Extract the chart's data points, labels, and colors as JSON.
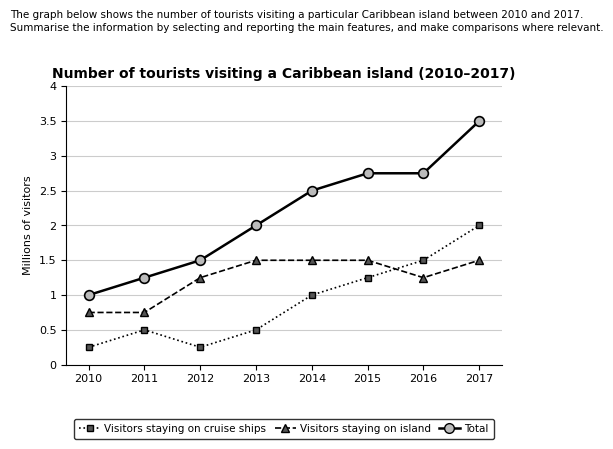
{
  "title": "Number of tourists visiting a Caribbean island (2010–2017)",
  "header_line1": "The graph below shows the number of tourists visiting a particular Caribbean island between 2010 and 2017.",
  "header_line2": "Summarise the information by selecting and reporting the main features, and make comparisons where relevant.",
  "ylabel": "Millions of visitors",
  "years": [
    2010,
    2011,
    2012,
    2013,
    2014,
    2015,
    2016,
    2017
  ],
  "cruise_ships": [
    0.25,
    0.5,
    0.25,
    0.5,
    1.0,
    1.25,
    1.5,
    2.0
  ],
  "on_island": [
    0.75,
    0.75,
    1.25,
    1.5,
    1.5,
    1.5,
    1.25,
    1.5
  ],
  "total": [
    1.0,
    1.25,
    1.5,
    2.0,
    2.5,
    2.75,
    2.75,
    3.5
  ],
  "ylim": [
    0,
    4
  ],
  "yticks": [
    0,
    0.5,
    1.0,
    1.5,
    2.0,
    2.5,
    3.0,
    3.5,
    4.0
  ],
  "background_color": "#ffffff",
  "grid_color": "#cccccc",
  "line_color": "#000000",
  "title_fontsize": 10,
  "header_fontsize": 7.5,
  "label_fontsize": 8,
  "tick_fontsize": 8,
  "legend_fontsize": 7.5
}
